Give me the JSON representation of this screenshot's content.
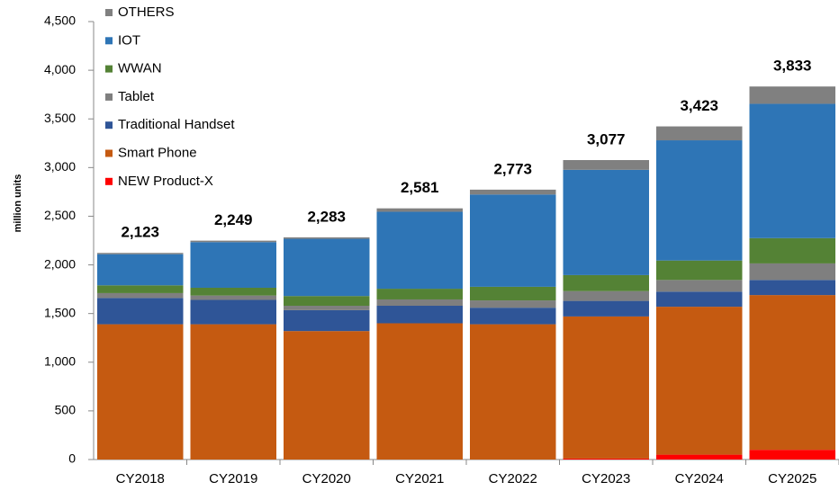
{
  "chart_data": {
    "type": "stacked_bar",
    "y_label": "million units",
    "categories": [
      "CY2018",
      "CY2019",
      "CY2020",
      "CY2021",
      "CY2022",
      "CY2023",
      "CY2024",
      "CY2025"
    ],
    "series": [
      {
        "name": "NEW Product-X",
        "color": "#ff0000",
        "values": [
          0,
          0,
          0,
          0,
          0,
          10,
          50,
          100
        ]
      },
      {
        "name": "Smart Phone",
        "color": "#c55a11",
        "values": [
          1390,
          1390,
          1320,
          1400,
          1390,
          1460,
          1520,
          1590
        ]
      },
      {
        "name": "Traditional Handset",
        "color": "#2f5597",
        "values": [
          270,
          250,
          215,
          180,
          170,
          160,
          155,
          155
        ]
      },
      {
        "name": "Tablet",
        "color": "#7f7f7f",
        "values": [
          50,
          45,
          45,
          65,
          75,
          100,
          120,
          170
        ]
      },
      {
        "name": "WWAN",
        "color": "#548235",
        "values": [
          80,
          80,
          100,
          110,
          140,
          165,
          200,
          260
        ]
      },
      {
        "name": "IOT",
        "color": "#2e75b6",
        "values": [
          320,
          469,
          588,
          791,
          948,
          1082,
          1235,
          1380
        ]
      },
      {
        "name": "OTHERS",
        "color": "#808080",
        "values": [
          13,
          15,
          15,
          35,
          50,
          100,
          143,
          178
        ]
      }
    ],
    "totals": {
      "values": [
        2123,
        2249,
        2283,
        2581,
        2773,
        3077,
        3423,
        3833
      ],
      "value_labels": [
        "2,123",
        "2,249",
        "2,283",
        "2,581",
        "2,773",
        "3,077",
        "3,423",
        "3,833"
      ]
    },
    "ylim": [
      0,
      4500
    ],
    "yticks": [
      0,
      500,
      {
        "value": 1000,
        "label": "1,000"
      },
      {
        "value": 1500,
        "label": "1,500"
      },
      {
        "value": 2000,
        "label": "2,000"
      },
      {
        "value": 2500,
        "label": "2,500"
      },
      {
        "value": 3000,
        "label": "3,000"
      },
      {
        "value": 3500,
        "label": "3,500"
      },
      {
        "value": 4000,
        "label": "4,000"
      },
      {
        "value": 4500,
        "label": "4,500"
      }
    ],
    "legend": "top-left"
  }
}
